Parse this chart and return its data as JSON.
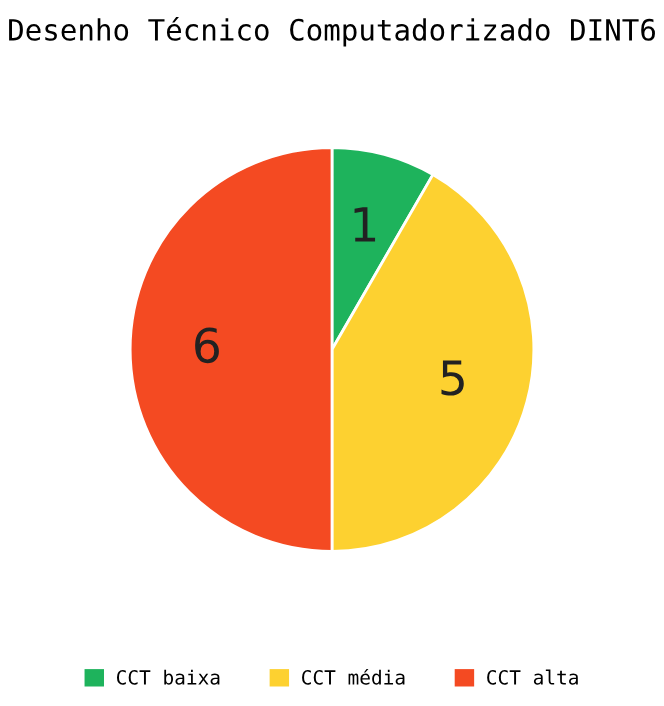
{
  "chart_data": {
    "type": "pie",
    "title": "Desenho Técnico Computadorizado DINT6",
    "categories": [
      "CCT baixa",
      "CCT média",
      "CCT alta"
    ],
    "values": [
      1,
      5,
      6
    ],
    "colors": [
      "#1eb35c",
      "#fdd130",
      "#f44a22"
    ],
    "data_labels": true,
    "legend": "bottom"
  }
}
